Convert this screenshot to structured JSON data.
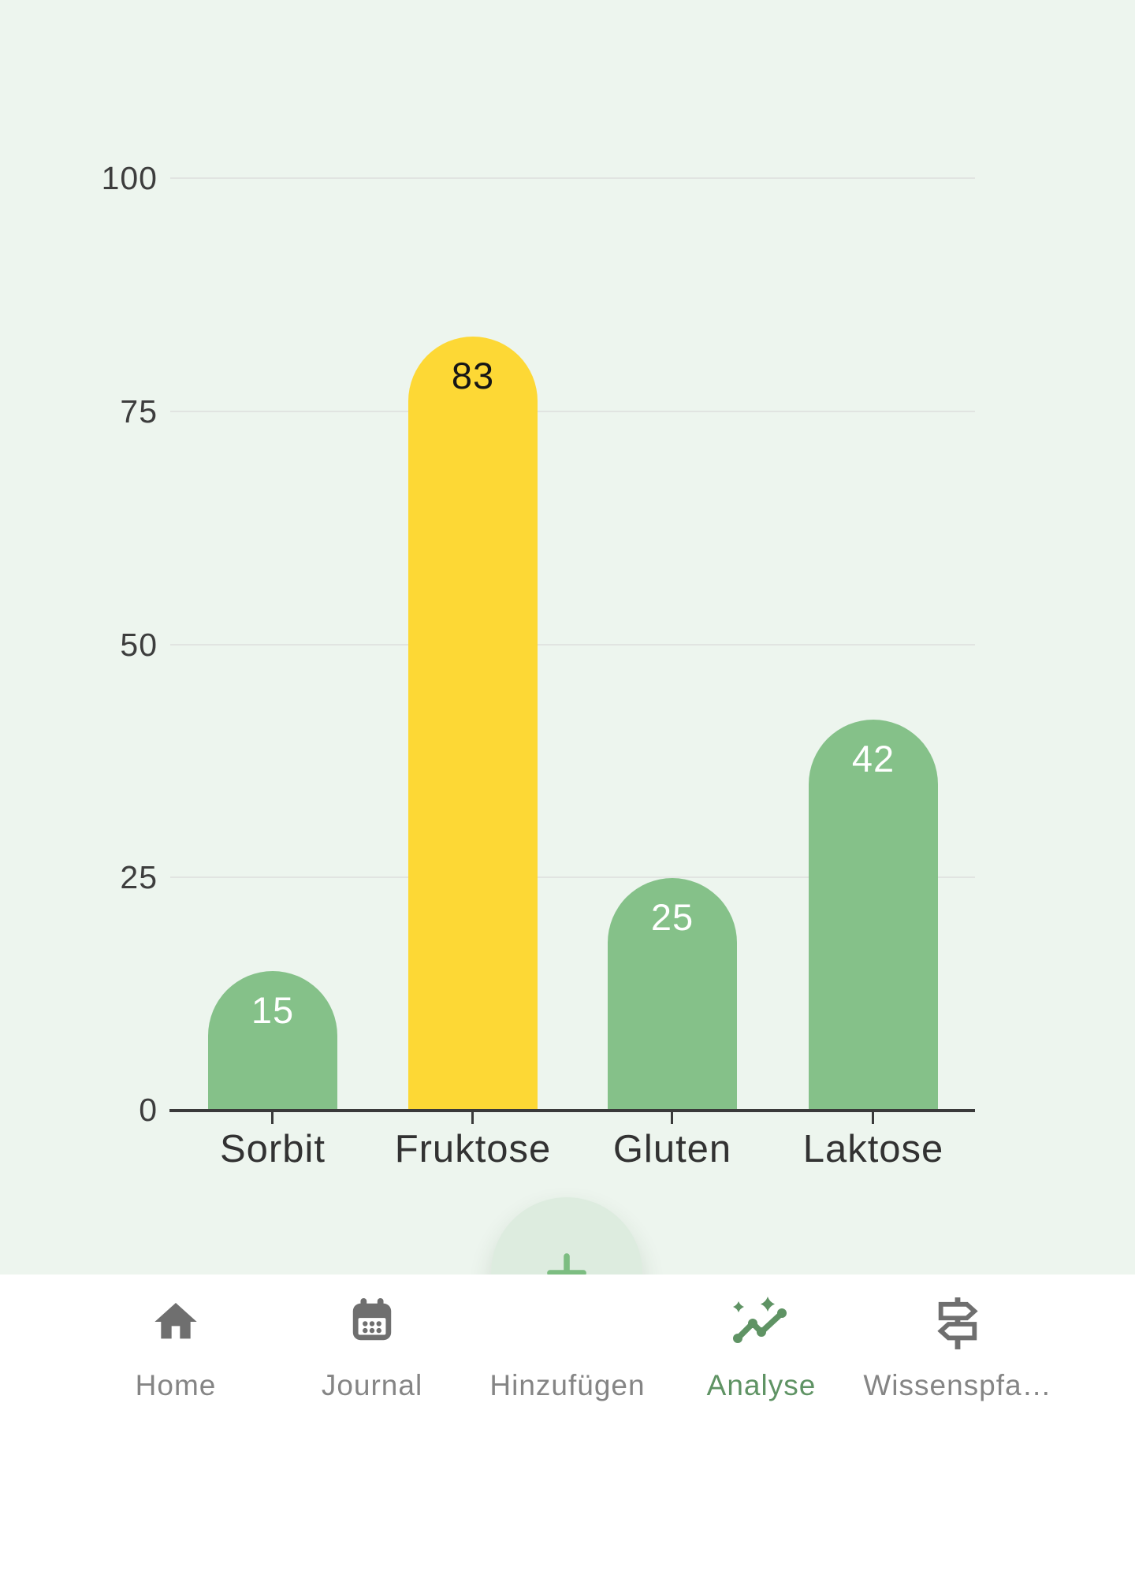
{
  "chart_data": {
    "type": "bar",
    "categories": [
      "Sorbit",
      "Fruktose",
      "Gluten",
      "Laktose"
    ],
    "values": [
      15,
      83,
      25,
      42
    ],
    "bar_colors": [
      "#85C189",
      "#FDD835",
      "#85C189",
      "#85C189"
    ],
    "value_label_colors": [
      "#FFFFFF",
      "#161616",
      "#FFFFFF",
      "#FFFFFF"
    ],
    "highlight_index": 1,
    "title": "",
    "xlabel": "",
    "ylabel": "",
    "ylim": [
      0,
      100
    ],
    "yticks": [
      0,
      25,
      50,
      75,
      100
    ],
    "grid": true,
    "legend": false
  },
  "colors": {
    "background": "#EDF5EE",
    "grid_line": "#E1E4E1",
    "axis_line": "#3A3A3A",
    "nav_background": "#FFFFFF",
    "nav_inactive": "#858585",
    "nav_icon_inactive": "#6F6F6F",
    "nav_active": "#5F9364",
    "fab_background": "#DDECDF",
    "fab_plus": "#7CBD81"
  },
  "fab": {
    "icon": "plus-icon"
  },
  "navbar": {
    "items": [
      {
        "label": "Home",
        "icon": "home-icon",
        "active": false
      },
      {
        "label": "Journal",
        "icon": "calendar-icon",
        "active": false
      },
      {
        "label": "Hinzufügen",
        "icon": "plus-icon",
        "active": false
      },
      {
        "label": "Analyse",
        "icon": "insights-icon",
        "active": true
      },
      {
        "label": "Wissenspfa…",
        "icon": "signpost-icon",
        "active": false
      }
    ]
  }
}
